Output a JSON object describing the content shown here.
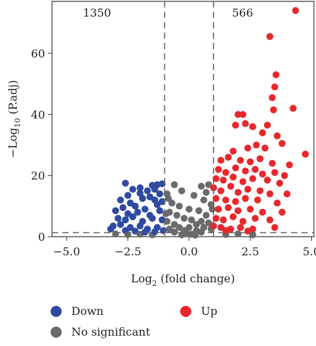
{
  "chart_data": {
    "type": "scatter",
    "title": "",
    "xlabel": "Log",
    "xlabel_sub": "2",
    "xlabel_rest": " (fold change)",
    "ylabel": "−Log",
    "ylabel_sub": "10",
    "ylabel_rest": " (P.adj)",
    "xlim": [
      -5.6,
      5.1
    ],
    "ylim": [
      0,
      77
    ],
    "xticks": [
      -5.0,
      -2.5,
      0.0,
      2.5,
      5.0
    ],
    "xtick_labels": [
      "−5.0",
      "−2.5",
      "0.0",
      "2.5",
      "5.0"
    ],
    "yticks": [
      0,
      20,
      40,
      60
    ],
    "ytick_labels": [
      "0",
      "20",
      "40",
      "60"
    ],
    "thresholds": {
      "x": [
        -1,
        1
      ],
      "y": 1.3
    },
    "counts": {
      "down": "1350",
      "up": "566"
    },
    "colors": {
      "down": "#2f4aa0",
      "up": "#e8282d",
      "ns": "#6b6b6b"
    },
    "series": [
      {
        "name": "Down",
        "color": "#2f4aa0",
        "points": [
          [
            -2.6,
            17.5
          ],
          [
            -2.3,
            15.5
          ],
          [
            -1.5,
            16.8
          ],
          [
            -1.3,
            17.0
          ],
          [
            -1.1,
            17.3
          ],
          [
            -2.0,
            14.2
          ],
          [
            -1.7,
            15.0
          ],
          [
            -1.2,
            14.0
          ],
          [
            -2.8,
            12.0
          ],
          [
            -2.4,
            11.0
          ],
          [
            -1.9,
            12.5
          ],
          [
            -1.6,
            13.0
          ],
          [
            -1.4,
            12.0
          ],
          [
            -2.2,
            10.0
          ],
          [
            -1.8,
            9.0
          ],
          [
            -1.3,
            10.5
          ],
          [
            -3.0,
            8.5
          ],
          [
            -2.7,
            9.5
          ],
          [
            -2.5,
            7.5
          ],
          [
            -2.1,
            8.0
          ],
          [
            -1.6,
            7.0
          ],
          [
            -1.2,
            8.5
          ],
          [
            -2.9,
            6.0
          ],
          [
            -2.6,
            5.5
          ],
          [
            -2.3,
            6.5
          ],
          [
            -1.9,
            5.0
          ],
          [
            -1.5,
            6.0
          ],
          [
            -1.1,
            5.5
          ],
          [
            -3.1,
            3.5
          ],
          [
            -2.8,
            4.0
          ],
          [
            -2.4,
            3.0
          ],
          [
            -2.0,
            3.5
          ],
          [
            -1.7,
            2.5
          ],
          [
            -1.3,
            3.0
          ],
          [
            -1.05,
            2.0
          ],
          [
            -2.6,
            2.0
          ],
          [
            -3.2,
            2.5
          ],
          [
            -2.2,
            1.8
          ],
          [
            -1.8,
            1.5
          ],
          [
            -1.4,
            1.6
          ],
          [
            -2.5,
            13.5
          ],
          [
            -1.1,
            11.5
          ],
          [
            -2.0,
            16.0
          ],
          [
            -1.4,
            15.5
          ]
        ]
      },
      {
        "name": "Up",
        "color": "#e8282d",
        "points": [
          [
            4.35,
            74
          ],
          [
            3.3,
            65.5
          ],
          [
            3.55,
            53
          ],
          [
            3.5,
            49
          ],
          [
            3.4,
            45.5
          ],
          [
            3.45,
            41.5
          ],
          [
            4.25,
            42
          ],
          [
            2.0,
            40
          ],
          [
            2.2,
            40
          ],
          [
            1.9,
            36.5
          ],
          [
            2.3,
            37
          ],
          [
            2.6,
            36
          ],
          [
            3.2,
            36.5
          ],
          [
            3.0,
            34
          ],
          [
            3.6,
            33
          ],
          [
            2.75,
            30
          ],
          [
            3.8,
            30.5
          ],
          [
            1.8,
            28
          ],
          [
            2.4,
            29
          ],
          [
            3.1,
            29
          ],
          [
            4.75,
            27
          ],
          [
            1.3,
            25
          ],
          [
            1.6,
            26
          ],
          [
            2.1,
            25
          ],
          [
            2.5,
            24.5
          ],
          [
            2.9,
            25.5
          ],
          [
            3.4,
            24
          ],
          [
            4.1,
            23.5
          ],
          [
            1.2,
            22
          ],
          [
            1.5,
            21
          ],
          [
            1.9,
            22.5
          ],
          [
            2.3,
            21.5
          ],
          [
            2.7,
            22
          ],
          [
            3.0,
            20.5
          ],
          [
            3.5,
            21
          ],
          [
            1.1,
            19
          ],
          [
            1.4,
            18.5
          ],
          [
            1.8,
            19.5
          ],
          [
            2.2,
            18
          ],
          [
            2.6,
            19
          ],
          [
            3.2,
            18.5
          ],
          [
            3.7,
            17.5
          ],
          [
            1.0,
            16
          ],
          [
            1.3,
            15
          ],
          [
            1.7,
            16.5
          ],
          [
            2.0,
            14.5
          ],
          [
            2.4,
            15.5
          ],
          [
            2.9,
            15
          ],
          [
            3.3,
            14
          ],
          [
            1.1,
            12.5
          ],
          [
            1.5,
            12
          ],
          [
            1.9,
            11.5
          ],
          [
            2.3,
            12.5
          ],
          [
            2.8,
            12
          ],
          [
            3.6,
            11
          ],
          [
            1.2,
            9
          ],
          [
            1.6,
            9.5
          ],
          [
            2.0,
            8.5
          ],
          [
            2.5,
            9
          ],
          [
            3.0,
            8
          ],
          [
            1.1,
            6
          ],
          [
            1.4,
            5.5
          ],
          [
            1.8,
            6.5
          ],
          [
            2.2,
            5
          ],
          [
            2.7,
            6
          ],
          [
            3.3,
            5.5
          ],
          [
            1.0,
            3.5
          ],
          [
            1.3,
            3
          ],
          [
            1.7,
            2.5
          ],
          [
            2.1,
            3
          ],
          [
            2.6,
            2.5
          ],
          [
            3.5,
            3
          ],
          [
            1.5,
            2
          ],
          [
            2.4,
            1.8
          ],
          [
            3.9,
            20
          ],
          [
            4.0,
            14
          ],
          [
            3.8,
            8
          ]
        ]
      },
      {
        "name": "No significant",
        "color": "#6b6b6b",
        "points": [
          [
            -0.6,
            17
          ],
          [
            -0.3,
            15
          ],
          [
            0.5,
            16.5
          ],
          [
            0.8,
            17
          ],
          [
            -0.9,
            14
          ],
          [
            0.2,
            13.5
          ],
          [
            0.6,
            12
          ],
          [
            -0.7,
            11
          ],
          [
            -0.4,
            10
          ],
          [
            0.9,
            10.5
          ],
          [
            0.0,
            9
          ],
          [
            -0.8,
            8
          ],
          [
            0.4,
            8.5
          ],
          [
            -0.5,
            7
          ],
          [
            0.7,
            7
          ],
          [
            -0.2,
            6
          ],
          [
            0.1,
            5.5
          ],
          [
            -0.9,
            5
          ],
          [
            0.5,
            5
          ],
          [
            -0.6,
            4
          ],
          [
            0.3,
            4
          ],
          [
            0.8,
            4.5
          ],
          [
            -0.4,
            3
          ],
          [
            0.0,
            3
          ],
          [
            0.6,
            3
          ],
          [
            -0.8,
            2.5
          ],
          [
            -0.2,
            2
          ],
          [
            0.3,
            2
          ],
          [
            0.9,
            2.5
          ],
          [
            -0.6,
            1.5
          ],
          [
            0.5,
            1.5
          ],
          [
            -0.1,
            1
          ],
          [
            0.1,
            0.8
          ],
          [
            -0.3,
            0.6
          ],
          [
            0.25,
            0.5
          ],
          [
            -2.0,
            0.8
          ],
          [
            -1.5,
            0.6
          ],
          [
            -2.5,
            0.7
          ],
          [
            -3.0,
            0.9
          ],
          [
            1.5,
            0.7
          ],
          [
            2.0,
            0.9
          ],
          [
            2.6,
            0.6
          ],
          [
            -0.95,
            7.5
          ],
          [
            0.95,
            9
          ],
          [
            -0.85,
            12.5
          ],
          [
            0.7,
            14.5
          ]
        ]
      }
    ]
  },
  "legend": {
    "down": "Down",
    "up": "Up",
    "ns": "No significant"
  }
}
